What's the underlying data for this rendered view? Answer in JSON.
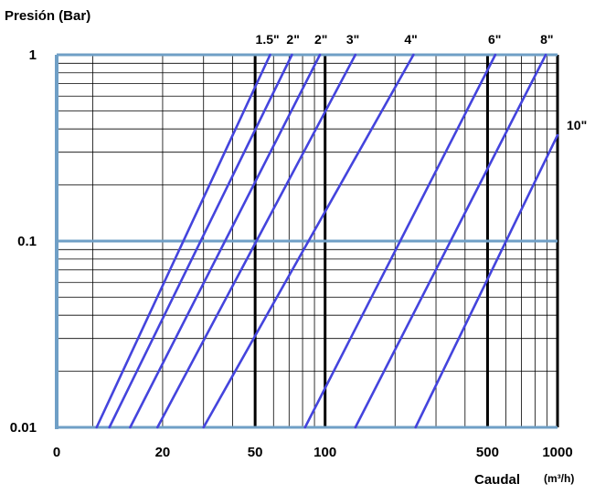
{
  "chart_data": {
    "type": "line",
    "title": "",
    "ylabel": "Presión (Bar)",
    "xlabel": "Caudal",
    "xunit": "(m³/h)",
    "xscale": "log",
    "yscale": "log",
    "xlim": [
      0,
      1000
    ],
    "ylim": [
      0.01,
      1
    ],
    "grid": true,
    "x_tick_labels": [
      {
        "value": 0,
        "label": "0"
      },
      {
        "value": 20,
        "label": "20"
      },
      {
        "value": 50,
        "label": "50"
      },
      {
        "value": 100,
        "label": "100"
      },
      {
        "value": 500,
        "label": "500"
      },
      {
        "value": 1000,
        "label": "1000"
      }
    ],
    "y_tick_labels": [
      {
        "value": 1,
        "label": "1"
      },
      {
        "value": 0.1,
        "label": "0.1"
      },
      {
        "value": 0.01,
        "label": "0.01"
      }
    ],
    "series": [
      {
        "name": "1.5\"",
        "points": [
          [
            10.4,
            0.01
          ],
          [
            58,
            1
          ]
        ]
      },
      {
        "name": "2\"",
        "points": [
          [
            11.8,
            0.01
          ],
          [
            72,
            1
          ]
        ]
      },
      {
        "name": "2\"",
        "points": [
          [
            14.5,
            0.01
          ],
          [
            95,
            1
          ]
        ]
      },
      {
        "name": "3\"",
        "points": [
          [
            19,
            0.01
          ],
          [
            135,
            1
          ]
        ]
      },
      {
        "name": "4\"",
        "points": [
          [
            30,
            0.01
          ],
          [
            240,
            1
          ]
        ]
      },
      {
        "name": "6\"",
        "points": [
          [
            82,
            0.01
          ],
          [
            540,
            1
          ]
        ]
      },
      {
        "name": "8\"",
        "points": [
          [
            135,
            0.01
          ],
          [
            890,
            1
          ]
        ]
      },
      {
        "name": "10\"",
        "points": [
          [
            245,
            0.01
          ],
          [
            1000,
            0.37
          ]
        ]
      }
    ],
    "colors": {
      "series": "#4444dd",
      "major_grid": "#6f9fc6",
      "minor_grid": "#000000",
      "heavy_grid": "#000000"
    }
  }
}
